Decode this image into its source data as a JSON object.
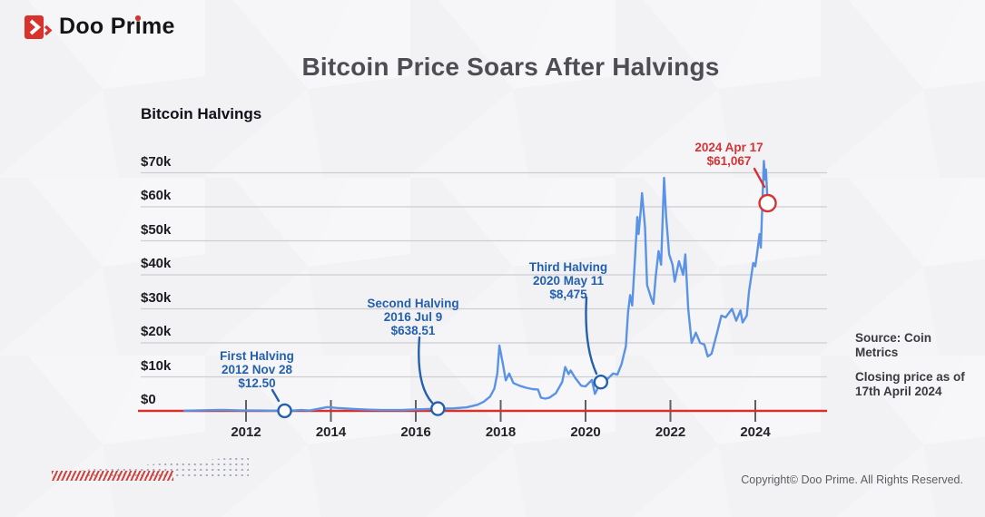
{
  "header": {
    "brand": "Doo Prime",
    "title": "Bitcoin Price Soars After Halvings"
  },
  "notes": {
    "source": "Source: Coin Metrics",
    "closing_line1": "Closing price as of",
    "closing_line2": "17th April 2024"
  },
  "footer": {
    "copyright": "Copyright© Doo Prime. All Rights Reserved."
  },
  "chart_data": {
    "type": "line",
    "title": "Bitcoin Halvings",
    "xlabel": "",
    "ylabel": "",
    "xlim": [
      2010.5,
      2024.6
    ],
    "ylim": [
      0,
      75000
    ],
    "grid": "horizontal",
    "legend": "none",
    "colors": {
      "line_blue": "#5a92e6",
      "annotation_blue": "#2360ae",
      "annotation_red": "#d43434",
      "axis_red": "#d7312e",
      "gridline": "#cdcdd2",
      "tick": "#5f5f64"
    },
    "x_axis": {
      "tick_values": [
        2012,
        2014,
        2016,
        2018,
        2020,
        2022,
        2024
      ],
      "tick_labels": [
        "2012",
        "2014",
        "2016",
        "2018",
        "2020",
        "2022",
        "2024"
      ]
    },
    "y_axis": {
      "tick_values": [
        70000,
        60000,
        50000,
        40000,
        30000,
        20000,
        10000,
        0
      ],
      "tick_labels": [
        "$70k",
        "$60k",
        "$50k",
        "$40k",
        "$30k",
        "$20k",
        "$10k",
        "$0"
      ]
    },
    "series": [
      {
        "name": "bitcoin-price-usd",
        "color": "#5a92e6",
        "points": [
          [
            2010.55,
            60
          ],
          [
            2011.4,
            300
          ],
          [
            2011.9,
            100
          ],
          [
            2012.3,
            120
          ],
          [
            2012.91,
            12.5
          ],
          [
            2013.0,
            13
          ],
          [
            2013.3,
            230
          ],
          [
            2013.5,
            100
          ],
          [
            2013.92,
            1130
          ],
          [
            2014.15,
            850
          ],
          [
            2014.5,
            600
          ],
          [
            2014.9,
            350
          ],
          [
            2015.2,
            230
          ],
          [
            2015.7,
            270
          ],
          [
            2016.0,
            430
          ],
          [
            2016.52,
            638.51
          ],
          [
            2016.9,
            750
          ],
          [
            2017.2,
            1050
          ],
          [
            2017.45,
            1800
          ],
          [
            2017.6,
            2700
          ],
          [
            2017.75,
            4200
          ],
          [
            2017.85,
            6500
          ],
          [
            2017.92,
            11000
          ],
          [
            2017.97,
            19200
          ],
          [
            2018.05,
            14000
          ],
          [
            2018.12,
            9000
          ],
          [
            2018.2,
            11000
          ],
          [
            2018.3,
            8200
          ],
          [
            2018.45,
            7400
          ],
          [
            2018.6,
            6800
          ],
          [
            2018.75,
            6400
          ],
          [
            2018.88,
            6300
          ],
          [
            2018.95,
            3900
          ],
          [
            2019.05,
            3600
          ],
          [
            2019.15,
            3900
          ],
          [
            2019.3,
            5200
          ],
          [
            2019.45,
            8500
          ],
          [
            2019.52,
            12900
          ],
          [
            2019.6,
            10800
          ],
          [
            2019.65,
            11900
          ],
          [
            2019.75,
            9800
          ],
          [
            2019.9,
            7400
          ],
          [
            2020.0,
            7200
          ],
          [
            2020.15,
            9100
          ],
          [
            2020.22,
            5000
          ],
          [
            2020.36,
            8475
          ],
          [
            2020.5,
            9200
          ],
          [
            2020.65,
            11000
          ],
          [
            2020.75,
            10700
          ],
          [
            2020.85,
            13800
          ],
          [
            2020.95,
            19000
          ],
          [
            2021.0,
            29000
          ],
          [
            2021.05,
            34000
          ],
          [
            2021.1,
            31000
          ],
          [
            2021.17,
            46000
          ],
          [
            2021.22,
            57000
          ],
          [
            2021.25,
            52000
          ],
          [
            2021.3,
            59000
          ],
          [
            2021.33,
            64000
          ],
          [
            2021.4,
            54000
          ],
          [
            2021.45,
            37000
          ],
          [
            2021.55,
            33000
          ],
          [
            2021.6,
            31500
          ],
          [
            2021.65,
            39000
          ],
          [
            2021.72,
            47000
          ],
          [
            2021.78,
            43000
          ],
          [
            2021.85,
            68500
          ],
          [
            2021.9,
            57000
          ],
          [
            2021.97,
            46000
          ],
          [
            2022.05,
            43000
          ],
          [
            2022.1,
            38000
          ],
          [
            2022.2,
            44000
          ],
          [
            2022.3,
            40000
          ],
          [
            2022.35,
            46000
          ],
          [
            2022.42,
            30000
          ],
          [
            2022.5,
            20000
          ],
          [
            2022.6,
            23000
          ],
          [
            2022.7,
            20000
          ],
          [
            2022.8,
            19500
          ],
          [
            2022.88,
            16000
          ],
          [
            2022.97,
            16800
          ],
          [
            2023.1,
            23000
          ],
          [
            2023.2,
            28000
          ],
          [
            2023.3,
            27500
          ],
          [
            2023.45,
            30000
          ],
          [
            2023.55,
            26500
          ],
          [
            2023.65,
            29500
          ],
          [
            2023.7,
            26000
          ],
          [
            2023.8,
            28000
          ],
          [
            2023.85,
            35000
          ],
          [
            2023.95,
            43500
          ],
          [
            2024.0,
            42500
          ],
          [
            2024.05,
            47000
          ],
          [
            2024.1,
            52000
          ],
          [
            2024.13,
            48000
          ],
          [
            2024.17,
            62000
          ],
          [
            2024.2,
            73500
          ],
          [
            2024.23,
            68000
          ],
          [
            2024.25,
            71000
          ],
          [
            2024.27,
            66000
          ],
          [
            2024.29,
            61067
          ]
        ]
      }
    ],
    "annotations": [
      {
        "id": "first-halving",
        "color": "#2360ae",
        "x": 2012.91,
        "y": 12.5,
        "lines": [
          "First Halving",
          "2012 Nov 28",
          "$12.50"
        ]
      },
      {
        "id": "second-halving",
        "color": "#2360ae",
        "x": 2016.52,
        "y": 638.51,
        "lines": [
          "Second Halving",
          "2016 Jul 9",
          "$638.51"
        ]
      },
      {
        "id": "third-halving",
        "color": "#2360ae",
        "x": 2020.36,
        "y": 8475,
        "lines": [
          "Third Halving",
          "2020 May 11",
          "$8,475"
        ]
      },
      {
        "id": "fourth-halving",
        "color": "#d43434",
        "x": 2024.29,
        "y": 61067,
        "lines": [
          "2024 Apr 17",
          "$61,067"
        ]
      }
    ]
  }
}
